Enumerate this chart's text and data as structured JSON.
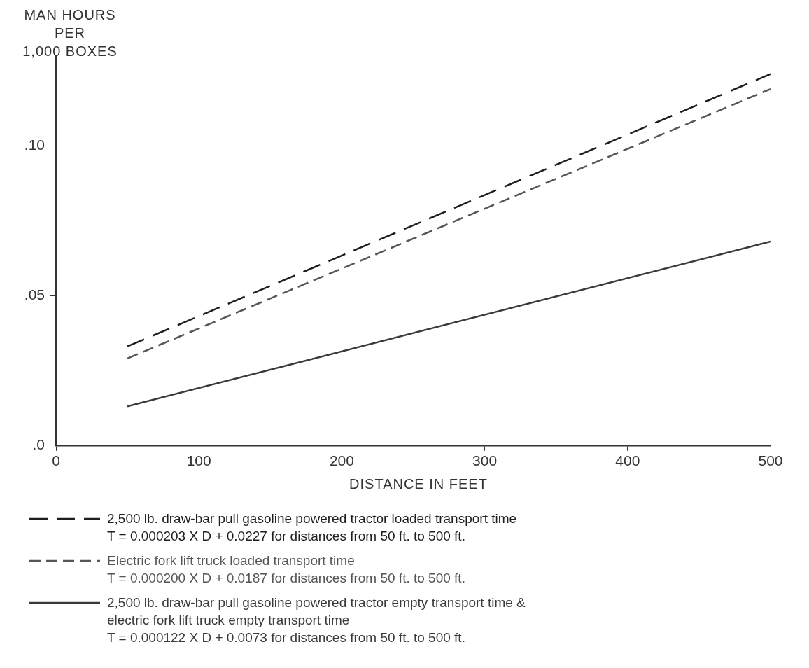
{
  "chart_data": {
    "type": "line",
    "xlabel": "DISTANCE IN FEET",
    "ylabel": "MAN HOURS\nPER\n1,000 BOXES",
    "x": [
      50,
      500
    ],
    "xlim": [
      0,
      500
    ],
    "xticks": [
      0,
      100,
      200,
      300,
      400,
      500
    ],
    "ylim": [
      0,
      0.13
    ],
    "yticks": [
      {
        "value": 0,
        "label": ".0"
      },
      {
        "value": 0.05,
        "label": ".05"
      },
      {
        "value": 0.1,
        "label": ".10"
      }
    ],
    "grid": false,
    "legend": "bottom",
    "marker": "none",
    "series": [
      {
        "name": "2,500 lb. draw-bar pull gasoline powered tractor loaded transport time\nT = 0.000203 X D + 0.0227 for distances from 50 ft. to 500 ft.",
        "color": "#1e1e1e",
        "line_style": "dashed",
        "values": [
          0.033,
          0.124
        ]
      },
      {
        "name": "Electric fork lift truck loaded transport time\nT = 0.000200 X D + 0.0187 for distances from 50 ft. to 500 ft.",
        "color": "#555555",
        "line_style": "dashed",
        "values": [
          0.029,
          0.119
        ]
      },
      {
        "name": "2,500 lb. draw-bar pull gasoline powered tractor empty transport time &\nelectric fork lift truck empty transport time\nT = 0.000122 X D + 0.0073 for distances from 50 ft. to 500 ft.",
        "color": "#3a3a3a",
        "line_style": "solid",
        "values": [
          0.013,
          0.068
        ]
      }
    ]
  }
}
